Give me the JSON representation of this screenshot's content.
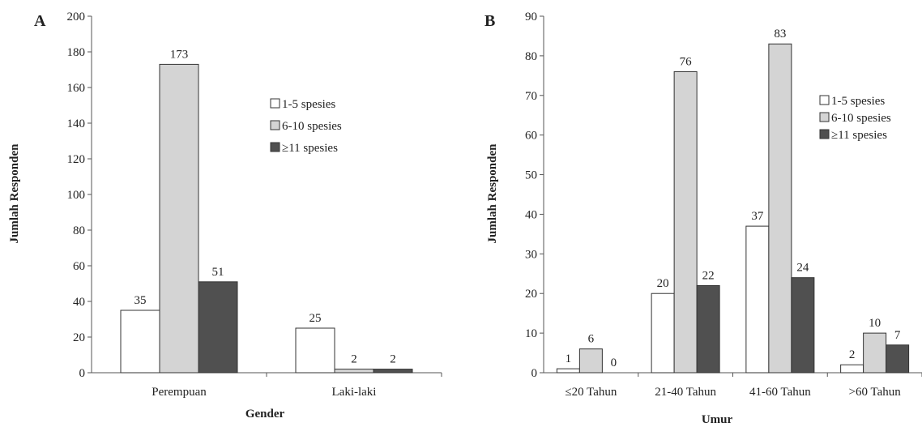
{
  "colors": {
    "series": [
      "#ffffff",
      "#d4d4d4",
      "#505050"
    ],
    "outline": "#333333",
    "axis": "#555555"
  },
  "chart_data": [
    {
      "panel_label": "A",
      "type": "bar",
      "xlabel": "Gender",
      "ylabel": "Jumlah Responden",
      "ylim": [
        0,
        200
      ],
      "yticks": [
        "0",
        "20",
        "40",
        "60",
        "80",
        "100",
        "120",
        "140",
        "160",
        "180",
        "200"
      ],
      "categories": [
        "Perempuan",
        "Laki-laki"
      ],
      "series": [
        {
          "name": "1-5 spesies",
          "values": [
            35,
            25
          ],
          "labels": [
            "35",
            "25"
          ]
        },
        {
          "name": "6-10 spesies",
          "values": [
            173,
            2
          ],
          "labels": [
            "173",
            "2"
          ]
        },
        {
          "name": "≥11 spesies",
          "values": [
            51,
            2
          ],
          "labels": [
            "51",
            "2"
          ]
        }
      ],
      "legend": "right",
      "grid": false
    },
    {
      "panel_label": "B",
      "type": "bar",
      "xlabel": "Umur",
      "ylabel": "Jumlah Responden",
      "ylim": [
        0,
        90
      ],
      "yticks": [
        "0",
        "10",
        "20",
        "30",
        "40",
        "50",
        "60",
        "70",
        "80",
        "90"
      ],
      "categories": [
        "≤20 Tahun",
        "21-40 Tahun",
        "41-60 Tahun",
        ">60 Tahun"
      ],
      "series": [
        {
          "name": "1-5 spesies",
          "values": [
            1,
            20,
            37,
            2
          ],
          "labels": [
            "1",
            "20",
            "37",
            "2"
          ]
        },
        {
          "name": "6-10 spesies",
          "values": [
            6,
            76,
            83,
            10
          ],
          "labels": [
            "6",
            "76",
            "83",
            "10"
          ]
        },
        {
          "name": "≥11 spesies",
          "values": [
            0,
            22,
            24,
            7
          ],
          "labels": [
            "0",
            "22",
            "24",
            "7"
          ]
        }
      ],
      "legend": "top-right",
      "grid": false
    }
  ]
}
